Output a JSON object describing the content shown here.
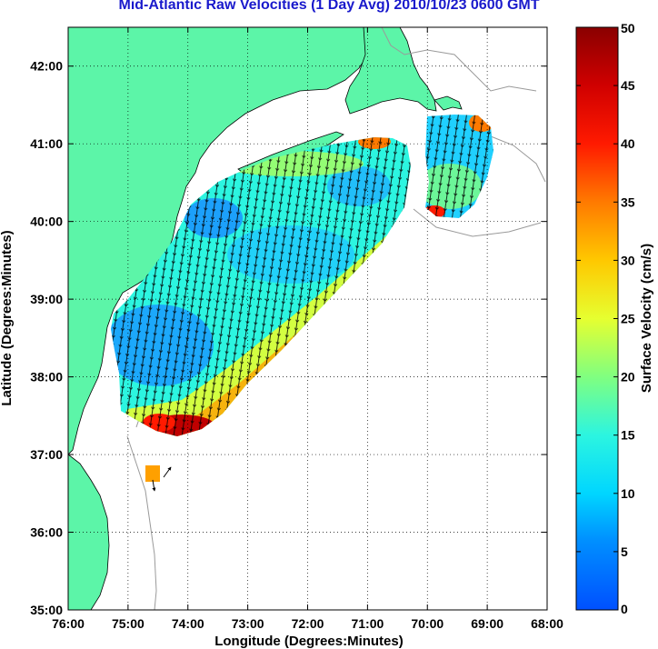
{
  "title": "Mid-Atlantic Raw Velocities (1 Day Avg) 2010/10/23 0600 GMT",
  "map": {
    "xlabel": "Longitude (Degrees:Minutes)",
    "ylabel": "Latitude (Degrees:Minutes)",
    "lon_range": [
      -76,
      -68
    ],
    "lat_range": [
      35,
      42.5
    ],
    "lon_ticks": [
      {
        "value": -76,
        "label": "76:00"
      },
      {
        "value": -75,
        "label": "75:00"
      },
      {
        "value": -74,
        "label": "74:00"
      },
      {
        "value": -73,
        "label": "73:00"
      },
      {
        "value": -72,
        "label": "72:00"
      },
      {
        "value": -71,
        "label": "71:00"
      },
      {
        "value": -70,
        "label": "70:00"
      },
      {
        "value": -69,
        "label": "69:00"
      },
      {
        "value": -68,
        "label": "68:00"
      }
    ],
    "lat_ticks": [
      {
        "value": 35,
        "label": "35:00"
      },
      {
        "value": 36,
        "label": "36:00"
      },
      {
        "value": 37,
        "label": "37:00"
      },
      {
        "value": 38,
        "label": "38:00"
      },
      {
        "value": 39,
        "label": "39:00"
      },
      {
        "value": 40,
        "label": "40:00"
      },
      {
        "value": 41,
        "label": "41:00"
      },
      {
        "value": 42,
        "label": "42:00"
      }
    ],
    "grid": "dotted",
    "land_color": "#5cf5a8",
    "coastline_color": "#000000",
    "bathymetry_color": "#9a9a9a"
  },
  "colorbar": {
    "label": "Surface Velocity (cm/s)",
    "range": [
      0,
      50
    ],
    "ticks": [
      {
        "value": 0,
        "label": "0"
      },
      {
        "value": 5,
        "label": "5"
      },
      {
        "value": 10,
        "label": "10"
      },
      {
        "value": 15,
        "label": "15"
      },
      {
        "value": 20,
        "label": "20"
      },
      {
        "value": 25,
        "label": "25"
      },
      {
        "value": 30,
        "label": "30"
      },
      {
        "value": 35,
        "label": "35"
      },
      {
        "value": 40,
        "label": "40"
      },
      {
        "value": 45,
        "label": "45"
      },
      {
        "value": 50,
        "label": "50"
      }
    ],
    "colormap": "jet"
  },
  "chart_data": {
    "type": "heatmap",
    "variable": "surface current speed with direction vectors",
    "units": "cm/s",
    "main_region_speeds": [
      {
        "lon": -74.7,
        "lat": 38.6,
        "speed": 8
      },
      {
        "lon": -74.5,
        "lat": 39.2,
        "speed": 12
      },
      {
        "lon": -74.1,
        "lat": 40.0,
        "speed": 6
      },
      {
        "lon": -73.6,
        "lat": 39.6,
        "speed": 10
      },
      {
        "lon": -72.9,
        "lat": 39.3,
        "speed": 14
      },
      {
        "lon": -72.4,
        "lat": 39.9,
        "speed": 12
      },
      {
        "lon": -71.6,
        "lat": 40.5,
        "speed": 10
      },
      {
        "lon": -71.0,
        "lat": 40.4,
        "speed": 12
      },
      {
        "lon": -70.8,
        "lat": 40.8,
        "speed": 17
      },
      {
        "lon": -74.3,
        "lat": 37.7,
        "speed": 30
      },
      {
        "lon": -74.0,
        "lat": 37.5,
        "speed": 48
      },
      {
        "lon": -73.7,
        "lat": 37.9,
        "speed": 28
      },
      {
        "lon": -73.2,
        "lat": 38.4,
        "speed": 26
      },
      {
        "lon": -72.6,
        "lat": 38.9,
        "speed": 28
      },
      {
        "lon": -71.9,
        "lat": 39.3,
        "speed": 28
      },
      {
        "lon": -71.2,
        "lat": 39.8,
        "speed": 22
      },
      {
        "lon": -70.9,
        "lat": 41.0,
        "speed": 38
      },
      {
        "lon": -70.5,
        "lat": 40.5,
        "speed": 32
      }
    ],
    "eastern_region_speeds": [
      {
        "lon": -69.5,
        "lat": 40.7,
        "speed": 10
      },
      {
        "lon": -69.2,
        "lat": 40.5,
        "speed": 14
      },
      {
        "lon": -69.8,
        "lat": 40.2,
        "speed": 18
      },
      {
        "lon": -69.0,
        "lat": 41.1,
        "speed": 35
      },
      {
        "lon": -69.9,
        "lat": 40.1,
        "speed": 38
      }
    ],
    "southern_patch_speeds": [
      {
        "lon": -74.5,
        "lat": 36.7,
        "speed": 32
      }
    ]
  }
}
